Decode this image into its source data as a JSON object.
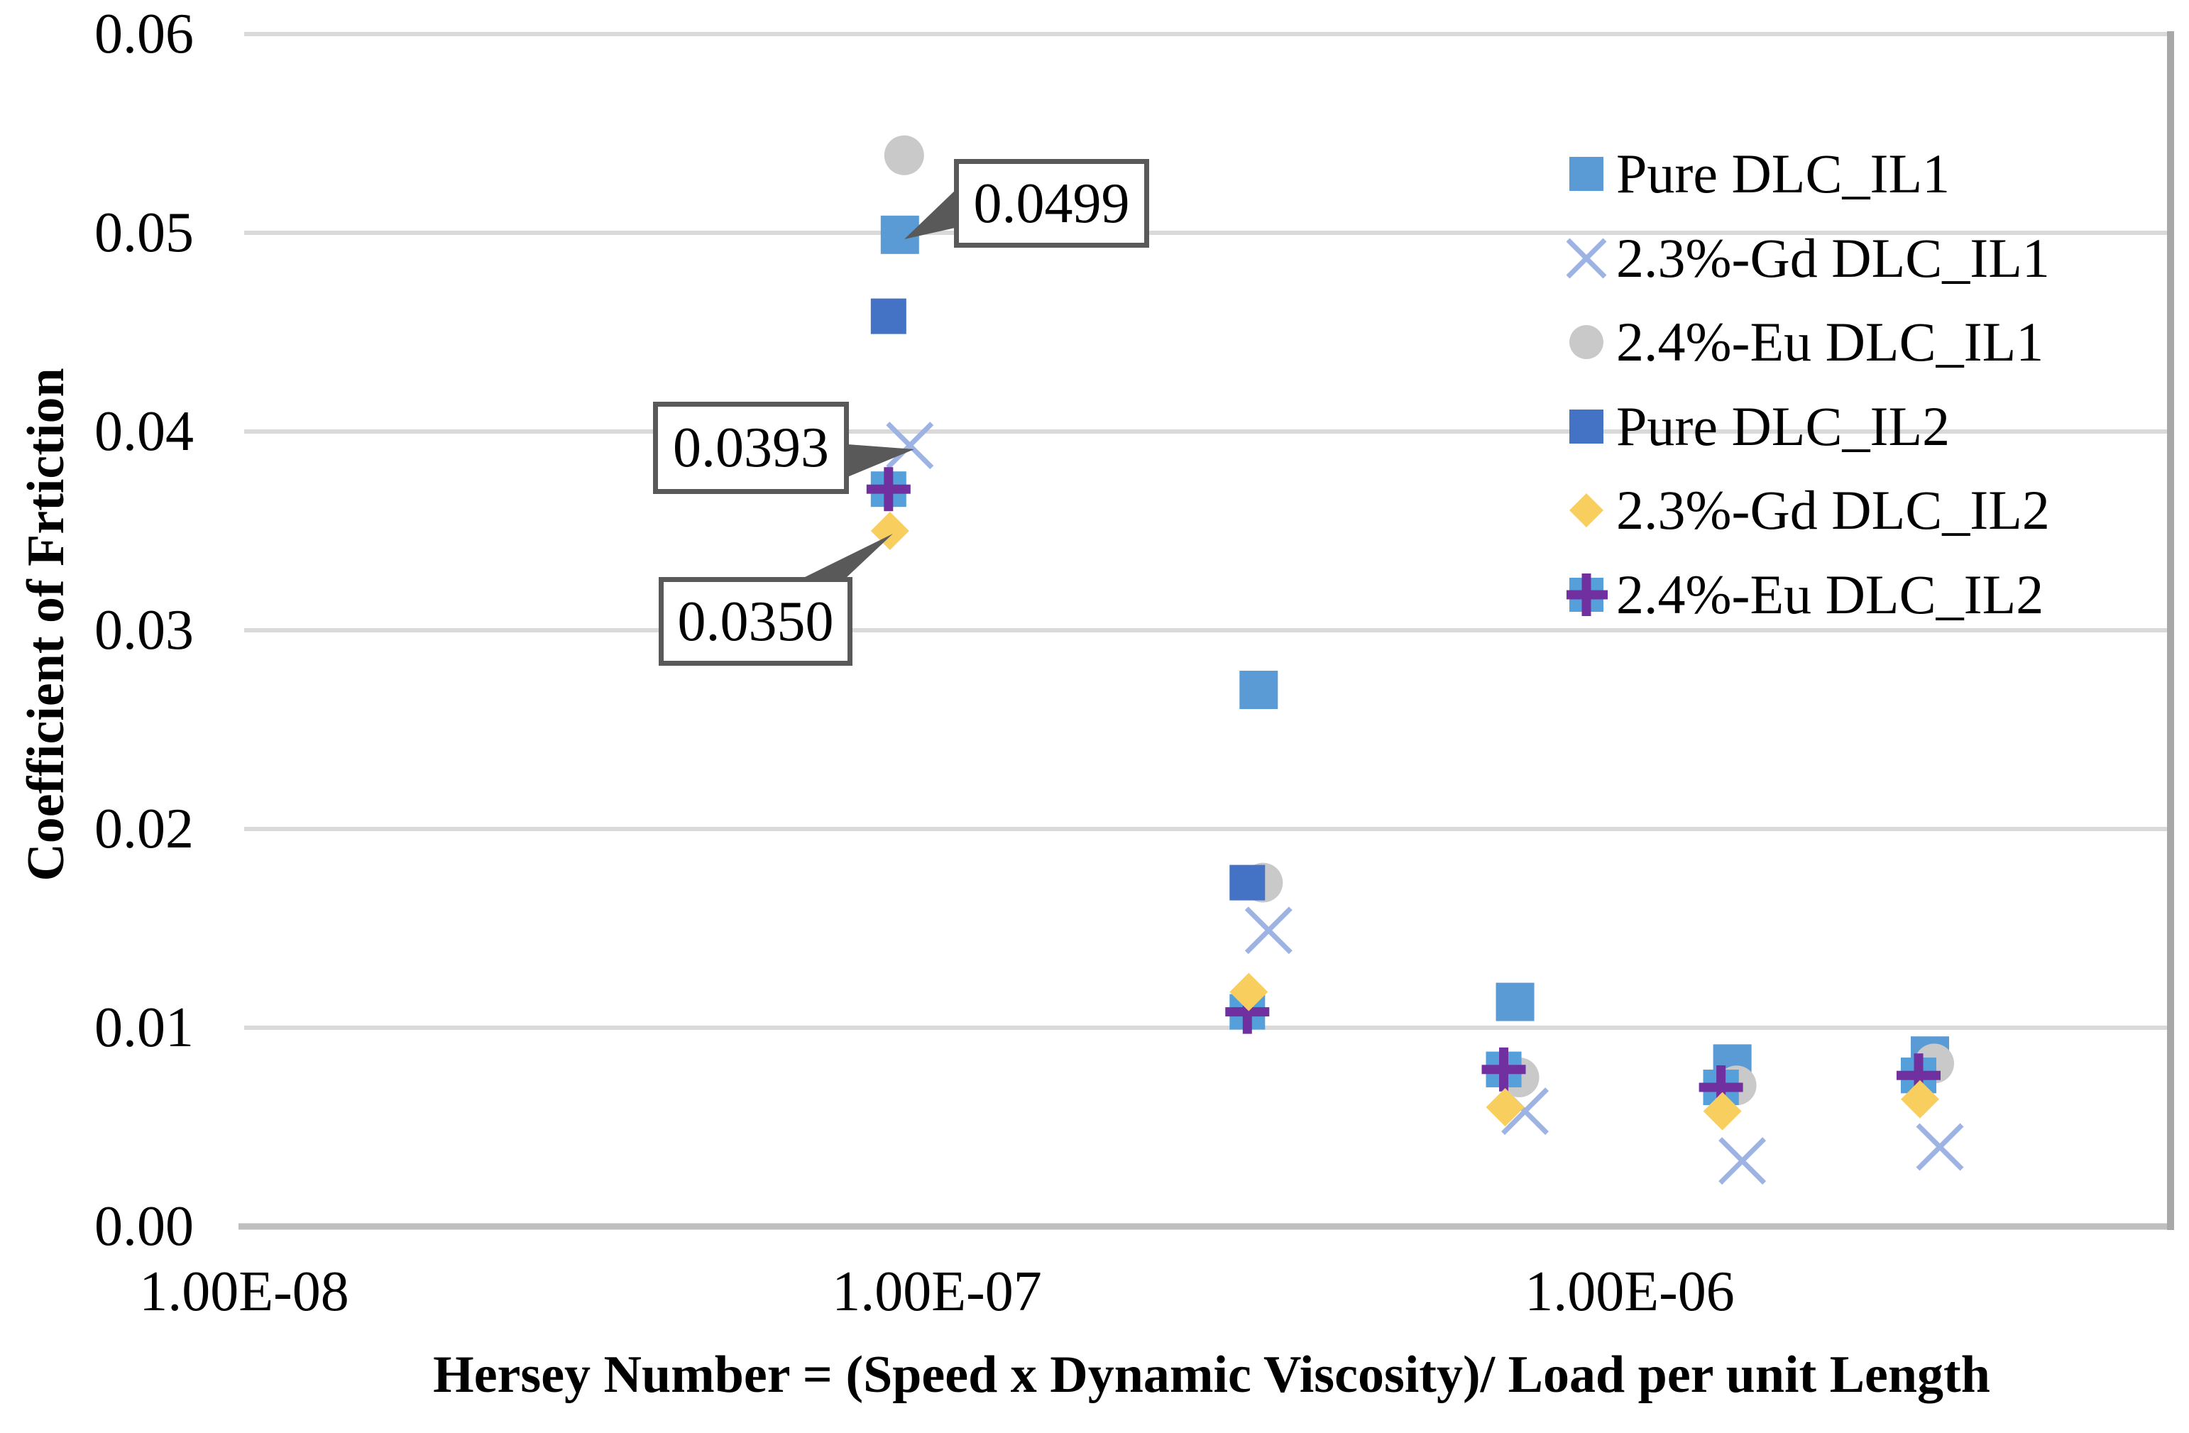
{
  "chart_data": {
    "type": "scatter",
    "title": "",
    "x_axis": {
      "label": "Hersey Number = (Speed x Dynamic Viscosity)/ Load per unit Length",
      "scale": "log",
      "tick_labels": [
        "1.00E-08",
        "1.00E-07",
        "1.00E-06"
      ],
      "tick_values": [
        1e-08,
        1e-07,
        1e-06
      ],
      "range": [
        1e-08,
        6e-06
      ],
      "gridlines": false
    },
    "y_axis": {
      "label": "Coefficient of Frtiction",
      "tick_labels": [
        "0.06",
        "0.05",
        "0.04",
        "0.03",
        "0.02",
        "0.01",
        "0.00"
      ],
      "tick_values": [
        0.06,
        0.05,
        0.04,
        0.03,
        0.02,
        0.01,
        0.0
      ],
      "range": [
        0,
        0.06
      ],
      "gridlines": true
    },
    "x": [
      8.8e-08,
      2.9e-07,
      6.8e-07,
      1.4e-06,
      2.7e-06
    ],
    "series": [
      {
        "name": "Pure DLC_IL1",
        "marker": "square",
        "color": "#5B9BD5",
        "values": [
          0.0499,
          0.027,
          0.0113,
          0.0082,
          0.0086
        ]
      },
      {
        "name": "2.3%-Gd DLC_IL1",
        "marker": "x",
        "color": "#9DB3E3",
        "values": [
          0.0393,
          0.0149,
          0.0058,
          0.0033,
          0.004
        ]
      },
      {
        "name": "2.4%-Eu DLC_IL1",
        "marker": "circle",
        "color": "#C9C9C9",
        "values": [
          0.0539,
          0.0173,
          0.0075,
          0.0071,
          0.0082
        ]
      },
      {
        "name": "Pure DLC_IL2",
        "marker": "square",
        "color": "#4472C4",
        "values": [
          0.0458,
          0.0173,
          0.0079,
          0.007,
          0.0076
        ]
      },
      {
        "name": "2.3%-Gd DLC_IL2",
        "marker": "diamond",
        "color": "#F8CF5E",
        "values": [
          0.035,
          0.0118,
          0.006,
          0.0058,
          0.0064
        ]
      },
      {
        "name": "2.4%-Eu DLC_IL2",
        "marker": "plus-square",
        "color": "#55A0DA",
        "plus_color": "#7030A0",
        "values": [
          0.0371,
          0.0108,
          0.0079,
          0.007,
          0.0076
        ]
      }
    ],
    "annotations": [
      {
        "text": "0.0499",
        "series": "Pure DLC_IL1",
        "x": 8.8e-08,
        "value": 0.0499
      },
      {
        "text": "0.0393",
        "series": "2.3%-Gd DLC_IL1",
        "x": 8.8e-08,
        "value": 0.0393
      },
      {
        "text": "0.0350",
        "series": "2.3%-Gd DLC_IL2",
        "x": 8.8e-08,
        "value": 0.035
      }
    ],
    "legend_position": "upper-right-inside",
    "colors": {
      "gridline": "#D9D9D9",
      "axis_line": "#BFBFBF",
      "plot_right_border": "#A8A8A8",
      "callout_border": "#595959"
    }
  }
}
